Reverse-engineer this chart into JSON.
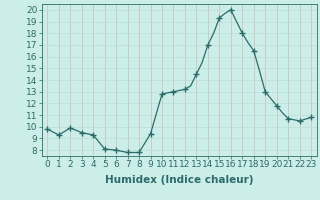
{
  "x": [
    0,
    0.5,
    1,
    1.5,
    2,
    2.5,
    3,
    3.5,
    4,
    4.5,
    5,
    5.5,
    6,
    6.5,
    7,
    7.5,
    8,
    8.5,
    9,
    9.5,
    10,
    10.5,
    11,
    11.5,
    12,
    12.5,
    13,
    13.5,
    14,
    14.5,
    15,
    15.5,
    16,
    16.5,
    17,
    17.5,
    18,
    18.5,
    19,
    19.5,
    20,
    20.5,
    21,
    21.5,
    22,
    22.5,
    23
  ],
  "y": [
    9.8,
    9.55,
    9.3,
    9.6,
    9.9,
    9.7,
    9.5,
    9.4,
    9.3,
    8.7,
    8.1,
    8.05,
    8.0,
    7.9,
    7.8,
    7.8,
    7.8,
    8.6,
    9.4,
    11.1,
    12.8,
    12.9,
    13.0,
    13.1,
    13.2,
    13.5,
    14.5,
    15.5,
    17.0,
    18.0,
    19.3,
    19.7,
    20.0,
    19.0,
    18.0,
    17.2,
    16.5,
    14.8,
    13.0,
    12.4,
    11.8,
    11.2,
    10.7,
    10.6,
    10.5,
    10.65,
    10.8
  ],
  "marker_x": [
    0,
    1,
    2,
    3,
    4,
    5,
    6,
    7,
    8,
    9,
    10,
    11,
    12,
    13,
    14,
    15,
    16,
    17,
    18,
    19,
    20,
    21,
    22,
    23
  ],
  "marker_y": [
    9.8,
    9.3,
    9.9,
    9.5,
    9.3,
    8.1,
    8.0,
    7.8,
    7.8,
    9.4,
    12.8,
    13.0,
    13.2,
    14.5,
    17.0,
    19.3,
    20.0,
    18.0,
    16.5,
    13.0,
    11.8,
    10.7,
    10.5,
    10.8
  ],
  "xlabel": "Humidex (Indice chaleur)",
  "xlim": [
    -0.5,
    23.5
  ],
  "ylim": [
    7.5,
    20.5
  ],
  "yticks": [
    8,
    9,
    10,
    11,
    12,
    13,
    14,
    15,
    16,
    17,
    18,
    19,
    20
  ],
  "xticks": [
    0,
    1,
    2,
    3,
    4,
    5,
    6,
    7,
    8,
    9,
    10,
    11,
    12,
    13,
    14,
    15,
    16,
    17,
    18,
    19,
    20,
    21,
    22,
    23
  ],
  "line_color": "#2d6b6b",
  "marker_color": "#2d6b6b",
  "bg_color": "#cceee8",
  "grid_color_h": "#b8ddd8",
  "grid_color_v": "#d4b8b8",
  "label_fontsize": 7.5,
  "tick_fontsize": 6.5,
  "tick_color": "#2d6b6b"
}
